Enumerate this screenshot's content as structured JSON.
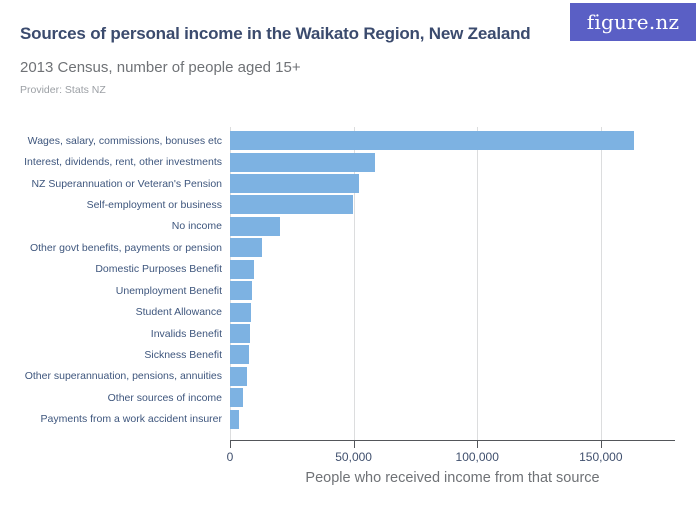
{
  "header": {
    "title": "Sources of personal income in the Waikato Region, New Zealand",
    "subtitle": "2013 Census, number of people aged 15+",
    "provider": "Provider: Stats NZ",
    "logo_text": "figure.nz"
  },
  "colors": {
    "bar": "#7db2e2",
    "title_text": "#3b4b6e",
    "subtitle_text": "#6f7276",
    "provider_text": "#9ca0a5",
    "category_label": "#3e567d",
    "tick_label": "#40506e",
    "gridline": "#dcddde",
    "axis_line": "#53565a",
    "logo_background": "#5a5fc5"
  },
  "chart_data": {
    "type": "bar",
    "orientation": "horizontal",
    "title": "Sources of personal income in the Waikato Region, New Zealand",
    "subtitle": "2013 Census, number of people aged 15+",
    "categories": [
      "Wages, salary, commissions, bonuses etc",
      "Interest, dividends, rent, other investments",
      "NZ Superannuation or Veteran's Pension",
      "Self-employment or business",
      "No income",
      "Other govt benefits, payments or pension",
      "Domestic Purposes Benefit",
      "Unemployment Benefit",
      "Student Allowance",
      "Invalids Benefit",
      "Sickness Benefit",
      "Other superannuation, pensions, annuities",
      "Other sources of income",
      "Payments from a work accident insurer"
    ],
    "values": [
      163500,
      58500,
      52300,
      49600,
      20200,
      13000,
      9600,
      8700,
      8300,
      8000,
      7600,
      6800,
      5200,
      3500
    ],
    "xlabel": "People who received income from that source",
    "ylabel": "",
    "xlim": [
      0,
      180000
    ],
    "xticks": [
      0,
      50000,
      100000,
      150000
    ],
    "xtick_labels": [
      "0",
      "50,000",
      "100,000",
      "150,000"
    ],
    "grid": true,
    "legend": false
  }
}
